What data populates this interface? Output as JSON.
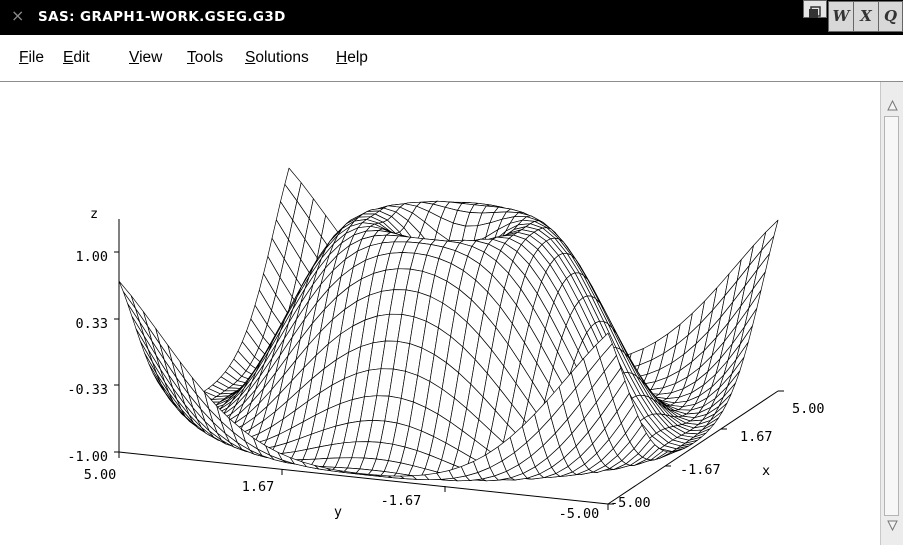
{
  "window": {
    "title": "SAS: GRAPH1-WORK.GSEG.G3D",
    "close_glyph": "×"
  },
  "title_buttons": {
    "w": "W",
    "x": "X",
    "q": "Q"
  },
  "menu": [
    {
      "mn": "F",
      "rest": "ile"
    },
    {
      "mn": "E",
      "rest": "dit"
    },
    {
      "mn": "V",
      "rest": "iew"
    },
    {
      "mn": "T",
      "rest": "ools"
    },
    {
      "mn": "S",
      "rest": "olutions"
    },
    {
      "mn": "H",
      "rest": "elp"
    }
  ],
  "chart_data": {
    "type": "surface",
    "zlabel": "z",
    "xlabel": "x",
    "ylabel": "y",
    "z_ticks": [
      "1.00",
      "0.33",
      "-0.33",
      "-1.00"
    ],
    "x_ticks": [
      "5.00",
      "1.67",
      "-1.67",
      "-5.00"
    ],
    "y_ticks": [
      "5.00",
      "1.67",
      "-1.67",
      "-5.00"
    ],
    "zlim": [
      -1,
      1
    ],
    "xlim": [
      -5,
      5
    ],
    "ylim": [
      -5,
      5
    ],
    "grid_lines": 41,
    "surface": "z = sin(sqrt(x*x + y*y))"
  }
}
